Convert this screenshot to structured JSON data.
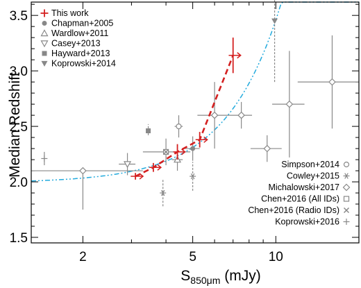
{
  "chart_data": {
    "type": "scatter",
    "xlabel_main": "S",
    "xlabel_sub": "850μm",
    "xlabel_unit": " (mJy)",
    "ylabel": "Median Redshift",
    "x_scale": "log",
    "xlim": [
      1.3,
      20
    ],
    "ylim": [
      1.45,
      3.62
    ],
    "x_ticks": [
      2,
      5,
      10
    ],
    "y_ticks": [
      1.5,
      2.0,
      2.5,
      3.0,
      3.5
    ],
    "y_tick_labels": [
      "1.5",
      "2.0",
      "2.5",
      "3.0",
      "3.5"
    ],
    "colors": {
      "this_work": "#d42020",
      "comparison": "#888888",
      "fit": "#22aadd"
    },
    "legend_top": [
      {
        "name": "This work",
        "marker": "cross-red"
      },
      {
        "name": "Chapman+2005",
        "marker": "filled-circle"
      },
      {
        "name": "Wardlow+2011",
        "marker": "open-triangle"
      },
      {
        "name": "Casey+2013",
        "marker": "open-inverted-triangle"
      },
      {
        "name": "Hayward+2013",
        "marker": "filled-square"
      },
      {
        "name": "Koprowski+2014",
        "marker": "filled-inverted-triangle"
      }
    ],
    "legend_bottom": [
      {
        "name": "Simpson+2014",
        "marker": "open-circle"
      },
      {
        "name": "Cowley+2015",
        "marker": "asterisk"
      },
      {
        "name": "Michalowski+2017",
        "marker": "open-diamond"
      },
      {
        "name": "Chen+2016 (All IDs)",
        "marker": "open-square"
      },
      {
        "name": "Chen+2016 (Radio IDs)",
        "marker": "x-cross"
      },
      {
        "name": "Koprowski+2016",
        "marker": "plus"
      }
    ],
    "this_work": [
      {
        "x": 3.1,
        "y": 2.05,
        "xerr": [
          0.12,
          0.12
        ],
        "yerr": [
          0.03,
          0.03
        ]
      },
      {
        "x": 3.6,
        "y": 2.13,
        "xerr": [
          0.12,
          0.12
        ],
        "yerr": [
          0.04,
          0.04
        ]
      },
      {
        "x": 4.4,
        "y": 2.27,
        "xerr": [
          0.15,
          0.15
        ],
        "yerr": [
          0.07,
          0.07
        ]
      },
      {
        "x": 5.3,
        "y": 2.38,
        "xerr": [
          0.18,
          0.18
        ],
        "yerr": [
          0.07,
          0.07
        ]
      },
      {
        "x": 7.0,
        "y": 3.14,
        "xerr": [
          0.25,
          0.25
        ],
        "yerr": [
          0.16,
          0.16
        ]
      }
    ],
    "fit_curve": {
      "a": 2.0,
      "s0": 2.95,
      "p": 2.2
    },
    "comparison": [
      {
        "name": "Chapman+2005",
        "marker": "filled-circle",
        "x": 5.0,
        "y": 2.3,
        "xerr": [
          0.3,
          0.3
        ],
        "yerr": [
          0.11,
          0.11
        ]
      },
      {
        "name": "Wardlow+2011",
        "marker": "open-triangle",
        "x": 4.4,
        "y": 2.2,
        "xerr": [
          0.2,
          0.2
        ],
        "yerr": [
          0.1,
          0.1
        ]
      },
      {
        "name": "Casey+2013",
        "marker": "open-inverted-triangle",
        "x": 2.9,
        "y": 2.16,
        "xerr": [
          0.2,
          0.2
        ],
        "yerr": [
          0.1,
          0.1
        ]
      },
      {
        "name": "Hayward+2013",
        "marker": "filled-square",
        "x": 3.45,
        "y": 2.46,
        "xerr": [
          0,
          0
        ],
        "yerr": [
          0.04,
          0.06
        ]
      },
      {
        "name": "Koprowski+2014",
        "marker": "filled-inverted-triangle",
        "x": 9.9,
        "y": 3.45,
        "xerr": [
          0,
          0
        ],
        "yerr": [
          0.55,
          0.25
        ]
      },
      {
        "name": "Simpson+2014",
        "marker": "open-circle",
        "x": 4.45,
        "y": 2.5,
        "xerr": [
          0.15,
          0.15
        ],
        "yerr": [
          0.1,
          0.1
        ]
      },
      {
        "name": "Cowley+2015",
        "marker": "asterisk",
        "x": 5.0,
        "y": 2.05,
        "xerr": [
          0,
          0
        ],
        "yerr": [
          0.13,
          0.13
        ]
      },
      {
        "name": "Cowley+2015",
        "marker": "asterisk",
        "x": 3.9,
        "y": 1.9,
        "xerr": [
          0,
          0
        ],
        "yerr": [
          0.12,
          0.12
        ]
      },
      {
        "name": "Michalowski+2017",
        "marker": "open-diamond",
        "x": 2.0,
        "y": 2.1,
        "xerr": [
          0.7,
          1.3
        ],
        "yerr": [
          0.35,
          0.0
        ]
      },
      {
        "name": "Chen+2016 (All IDs)",
        "marker": "open-square",
        "x": 4.0,
        "y": 2.27,
        "xerr": [
          0.7,
          0.9
        ],
        "yerr": [
          0.12,
          0.12
        ]
      },
      {
        "name": "Chen+2016 (Radio IDs)",
        "marker": "x-cross",
        "x": 4.0,
        "y": 2.27,
        "xerr": [
          0,
          0
        ],
        "yerr": [
          0,
          0
        ]
      },
      {
        "name": "Koprowski+2016",
        "marker": "plus",
        "x": 1.45,
        "y": 2.21,
        "xerr": [
          0,
          0
        ],
        "yerr": [
          0.06,
          0.06
        ]
      },
      {
        "name": "Michalowski+2017",
        "marker": "open-diamond",
        "x": 6.0,
        "y": 2.6,
        "xerr": [
          0.8,
          0.8
        ],
        "yerr": [
          0.3,
          0.3
        ]
      },
      {
        "name": "Michalowski+2017",
        "marker": "open-diamond",
        "x": 7.5,
        "y": 2.6,
        "xerr": [
          0.7,
          0.7
        ],
        "yerr": [
          0.12,
          0.12
        ]
      },
      {
        "name": "Michalowski+2017",
        "marker": "open-diamond",
        "x": 9.3,
        "y": 2.3,
        "xerr": [
          1.2,
          1.2
        ],
        "yerr": [
          0.12,
          0.12
        ]
      },
      {
        "name": "Michalowski+2017",
        "marker": "open-diamond",
        "x": 11.2,
        "y": 2.7,
        "xerr": [
          1.5,
          1.5
        ],
        "yerr": [
          0.48,
          0.48
        ]
      },
      {
        "name": "Michalowski+2017",
        "marker": "open-diamond",
        "x": 16.0,
        "y": 2.9,
        "xerr": [
          4.0,
          4.0
        ],
        "yerr": [
          0.42,
          0.42
        ]
      }
    ]
  }
}
